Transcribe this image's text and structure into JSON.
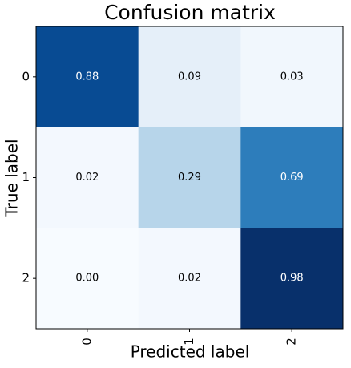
{
  "chart_data": {
    "type": "heatmap",
    "title": "Confusion matrix",
    "x_label": "Predicted label",
    "y_label": "True label",
    "x_categories": [
      "0",
      "1",
      "2"
    ],
    "y_categories": [
      "0",
      "1",
      "2"
    ],
    "values": [
      [
        0.88,
        0.09,
        0.03
      ],
      [
        0.02,
        0.29,
        0.69
      ],
      [
        0,
        0.02,
        0.98
      ]
    ],
    "value_labels": [
      [
        "0.88",
        "0.09",
        "0.03"
      ],
      [
        "0.02",
        "0.29",
        "0.69"
      ],
      [
        "0.00",
        "0.02",
        "0.98"
      ]
    ],
    "colormap": "Blues"
  }
}
